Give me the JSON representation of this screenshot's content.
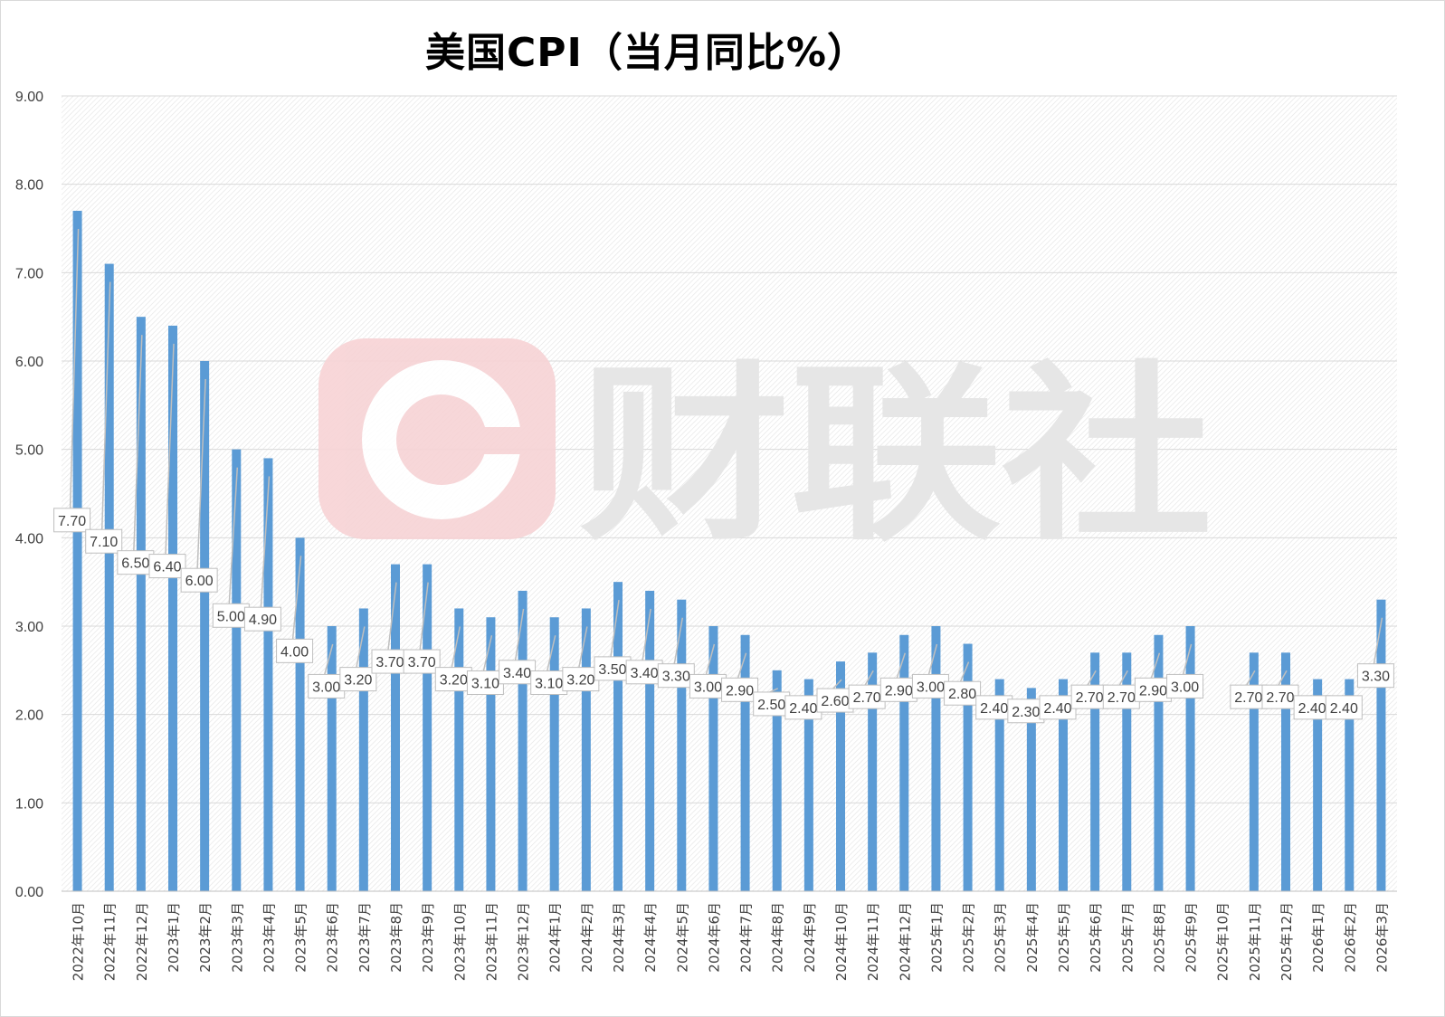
{
  "chart_data": {
    "type": "bar",
    "title": "美国CPI（当月同比%）",
    "ylim": [
      0,
      9
    ],
    "yticks": [
      "0.00",
      "1.00",
      "2.00",
      "3.00",
      "4.00",
      "5.00",
      "6.00",
      "7.00",
      "8.00",
      "9.00"
    ],
    "grid": true,
    "legend": "none",
    "categories": [
      "2022年10月",
      "2022年11月",
      "2022年12月",
      "2023年1月",
      "2023年2月",
      "2023年3月",
      "2023年4月",
      "2023年5月",
      "2023年6月",
      "2023年7月",
      "2023年8月",
      "2023年9月",
      "2023年10月",
      "2023年11月",
      "2023年12月",
      "2024年1月",
      "2024年2月",
      "2024年3月",
      "2024年4月",
      "2024年5月",
      "2024年6月",
      "2024年7月",
      "2024年8月",
      "2024年9月",
      "2024年10月",
      "2024年11月",
      "2024年12月",
      "2025年1月",
      "2025年2月",
      "2025年3月",
      "2025年4月",
      "2025年5月",
      "2025年6月",
      "2025年7月",
      "2025年8月",
      "2025年9月",
      "2025年10月",
      "2025年11月",
      "2025年12月",
      "2026年1月",
      "2026年2月",
      "2026年3月"
    ],
    "values": [
      7.7,
      7.1,
      6.5,
      6.4,
      6.0,
      5.0,
      4.9,
      4.0,
      3.0,
      3.2,
      3.7,
      3.7,
      3.2,
      3.1,
      3.4,
      3.1,
      3.2,
      3.5,
      3.4,
      3.3,
      3.0,
      2.9,
      2.5,
      2.4,
      2.6,
      2.7,
      2.9,
      3.0,
      2.8,
      2.4,
      2.3,
      2.4,
      2.7,
      2.7,
      2.9,
      3.0,
      null,
      2.7,
      2.7,
      2.4,
      2.4,
      3.3
    ],
    "data_labels": [
      "7.70",
      "7.10",
      "6.50",
      "6.40",
      "6.00",
      "5.00",
      "4.90",
      "4.00",
      "3.00",
      "3.20",
      "3.70",
      "3.70",
      "3.20",
      "3.10",
      "3.40",
      "3.10",
      "3.20",
      "3.50",
      "3.40",
      "3.30",
      "3.00",
      "2.90",
      "2.50",
      "2.40",
      "2.60",
      "2.70",
      "2.90",
      "3.00",
      "2.80",
      "2.40",
      "2.30",
      "2.40",
      "2.70",
      "2.70",
      "2.90",
      "3.00",
      "",
      "2.70",
      "2.70",
      "2.40",
      "2.40",
      "3.30"
    ],
    "colors": {
      "bar": "#5b9bd5",
      "grid": "#d9d9d9"
    }
  },
  "watermark": {
    "text": "财联社",
    "icon": "cailianshe-logo-icon",
    "color": "#f4c7c9"
  }
}
